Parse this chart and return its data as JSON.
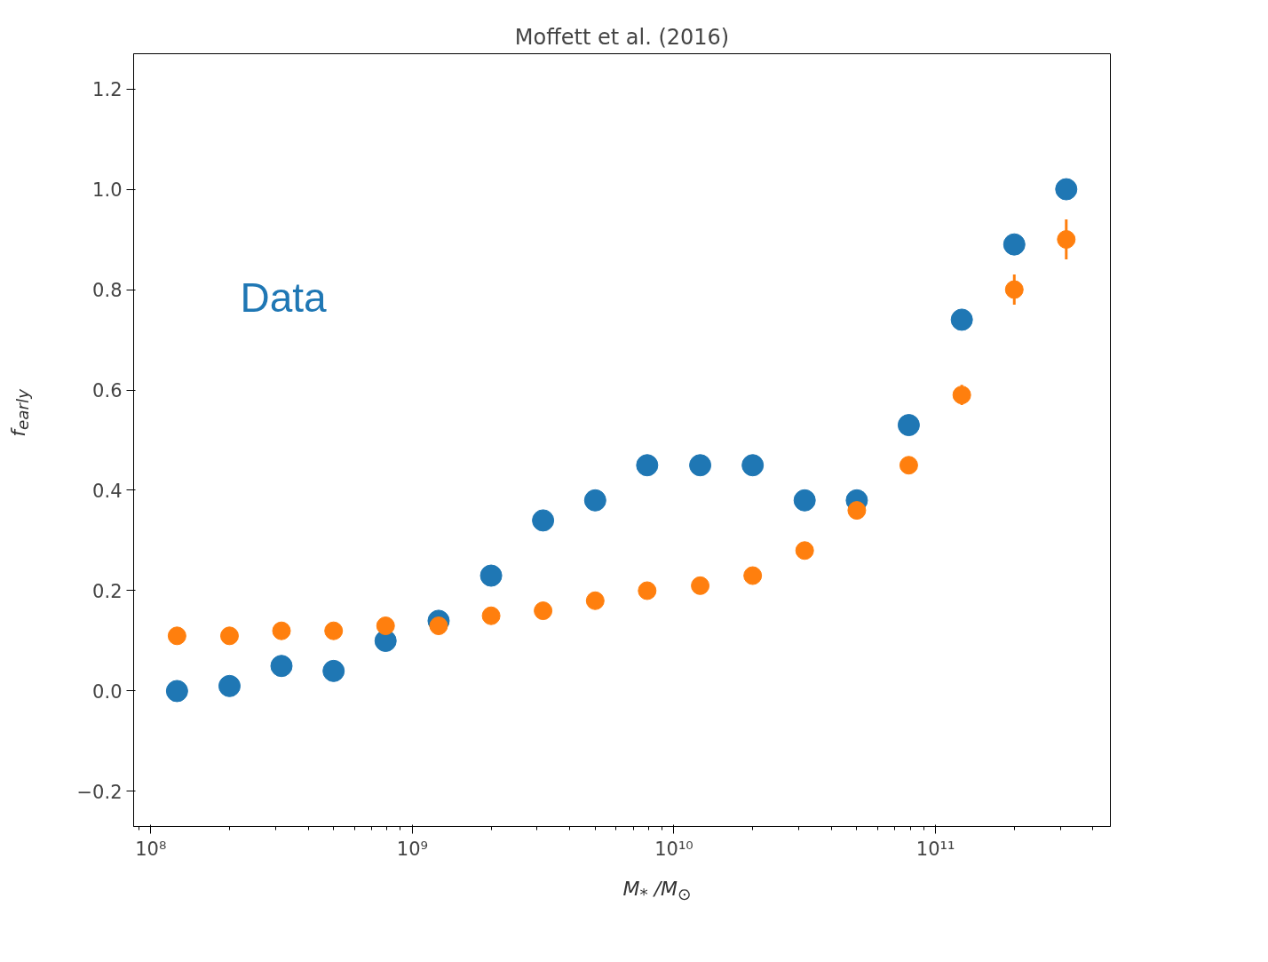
{
  "chart_data": {
    "type": "scatter",
    "title": "Moffett et al. (2016)",
    "xlabel": "M$_{*}$ /M$_{⊙}$",
    "ylabel": "f$_{early}$",
    "log": "x",
    "x": [
      126000000.0,
      200000000.0,
      316000000.0,
      500000000.0,
      790000000.0,
      1260000000.0,
      2000000000.0,
      3160000000.0,
      5000000000.0,
      7900000000.0,
      12600000000.0,
      20000000000.0,
      31600000000.0,
      50000000000.0,
      79000000000.0,
      126000000000.0,
      200000000000.0,
      316000000000.0
    ],
    "series": [
      {
        "name": "Data",
        "color": "#1f77b4",
        "values": [
          0.0,
          0.01,
          0.05,
          0.04,
          0.1,
          0.14,
          0.23,
          0.34,
          0.38,
          0.45,
          0.45,
          0.45,
          0.38,
          0.38,
          0.53,
          0.74,
          0.89,
          1.0
        ]
      },
      {
        "color": "#ff7f0e",
        "values": [
          0.11,
          0.11,
          0.12,
          0.12,
          0.13,
          0.13,
          0.15,
          0.16,
          0.18,
          0.2,
          0.21,
          0.23,
          0.28,
          0.36,
          0.45,
          0.59,
          0.8,
          0.9
        ],
        "errors": [
          null,
          null,
          null,
          null,
          null,
          null,
          null,
          null,
          null,
          null,
          null,
          null,
          null,
          null,
          null,
          0.02,
          0.03,
          0.04
        ]
      }
    ],
    "xlim": [
      86000000.0,
      466000000000.0
    ],
    "ylim": [
      -0.27,
      1.27
    ],
    "xticks": [
      {
        "value": 100000000.0,
        "label": "10⁸"
      },
      {
        "value": 1000000000.0,
        "label": "10⁹"
      },
      {
        "value": 10000000000.0,
        "label": "10¹⁰"
      },
      {
        "value": 100000000000.0,
        "label": "10¹¹"
      }
    ],
    "yticks": [
      {
        "value": -0.2,
        "label": "−0.2"
      },
      {
        "value": 0.0,
        "label": "0.0"
      },
      {
        "value": 0.2,
        "label": "0.2"
      },
      {
        "value": 0.4,
        "label": "0.4"
      },
      {
        "value": 0.6,
        "label": "0.6"
      },
      {
        "value": 0.8,
        "label": "0.8"
      },
      {
        "value": 1.0,
        "label": "1.0"
      },
      {
        "value": 1.2,
        "label": "1.2"
      }
    ],
    "marker": "circle",
    "grid": false,
    "legend": false
  }
}
